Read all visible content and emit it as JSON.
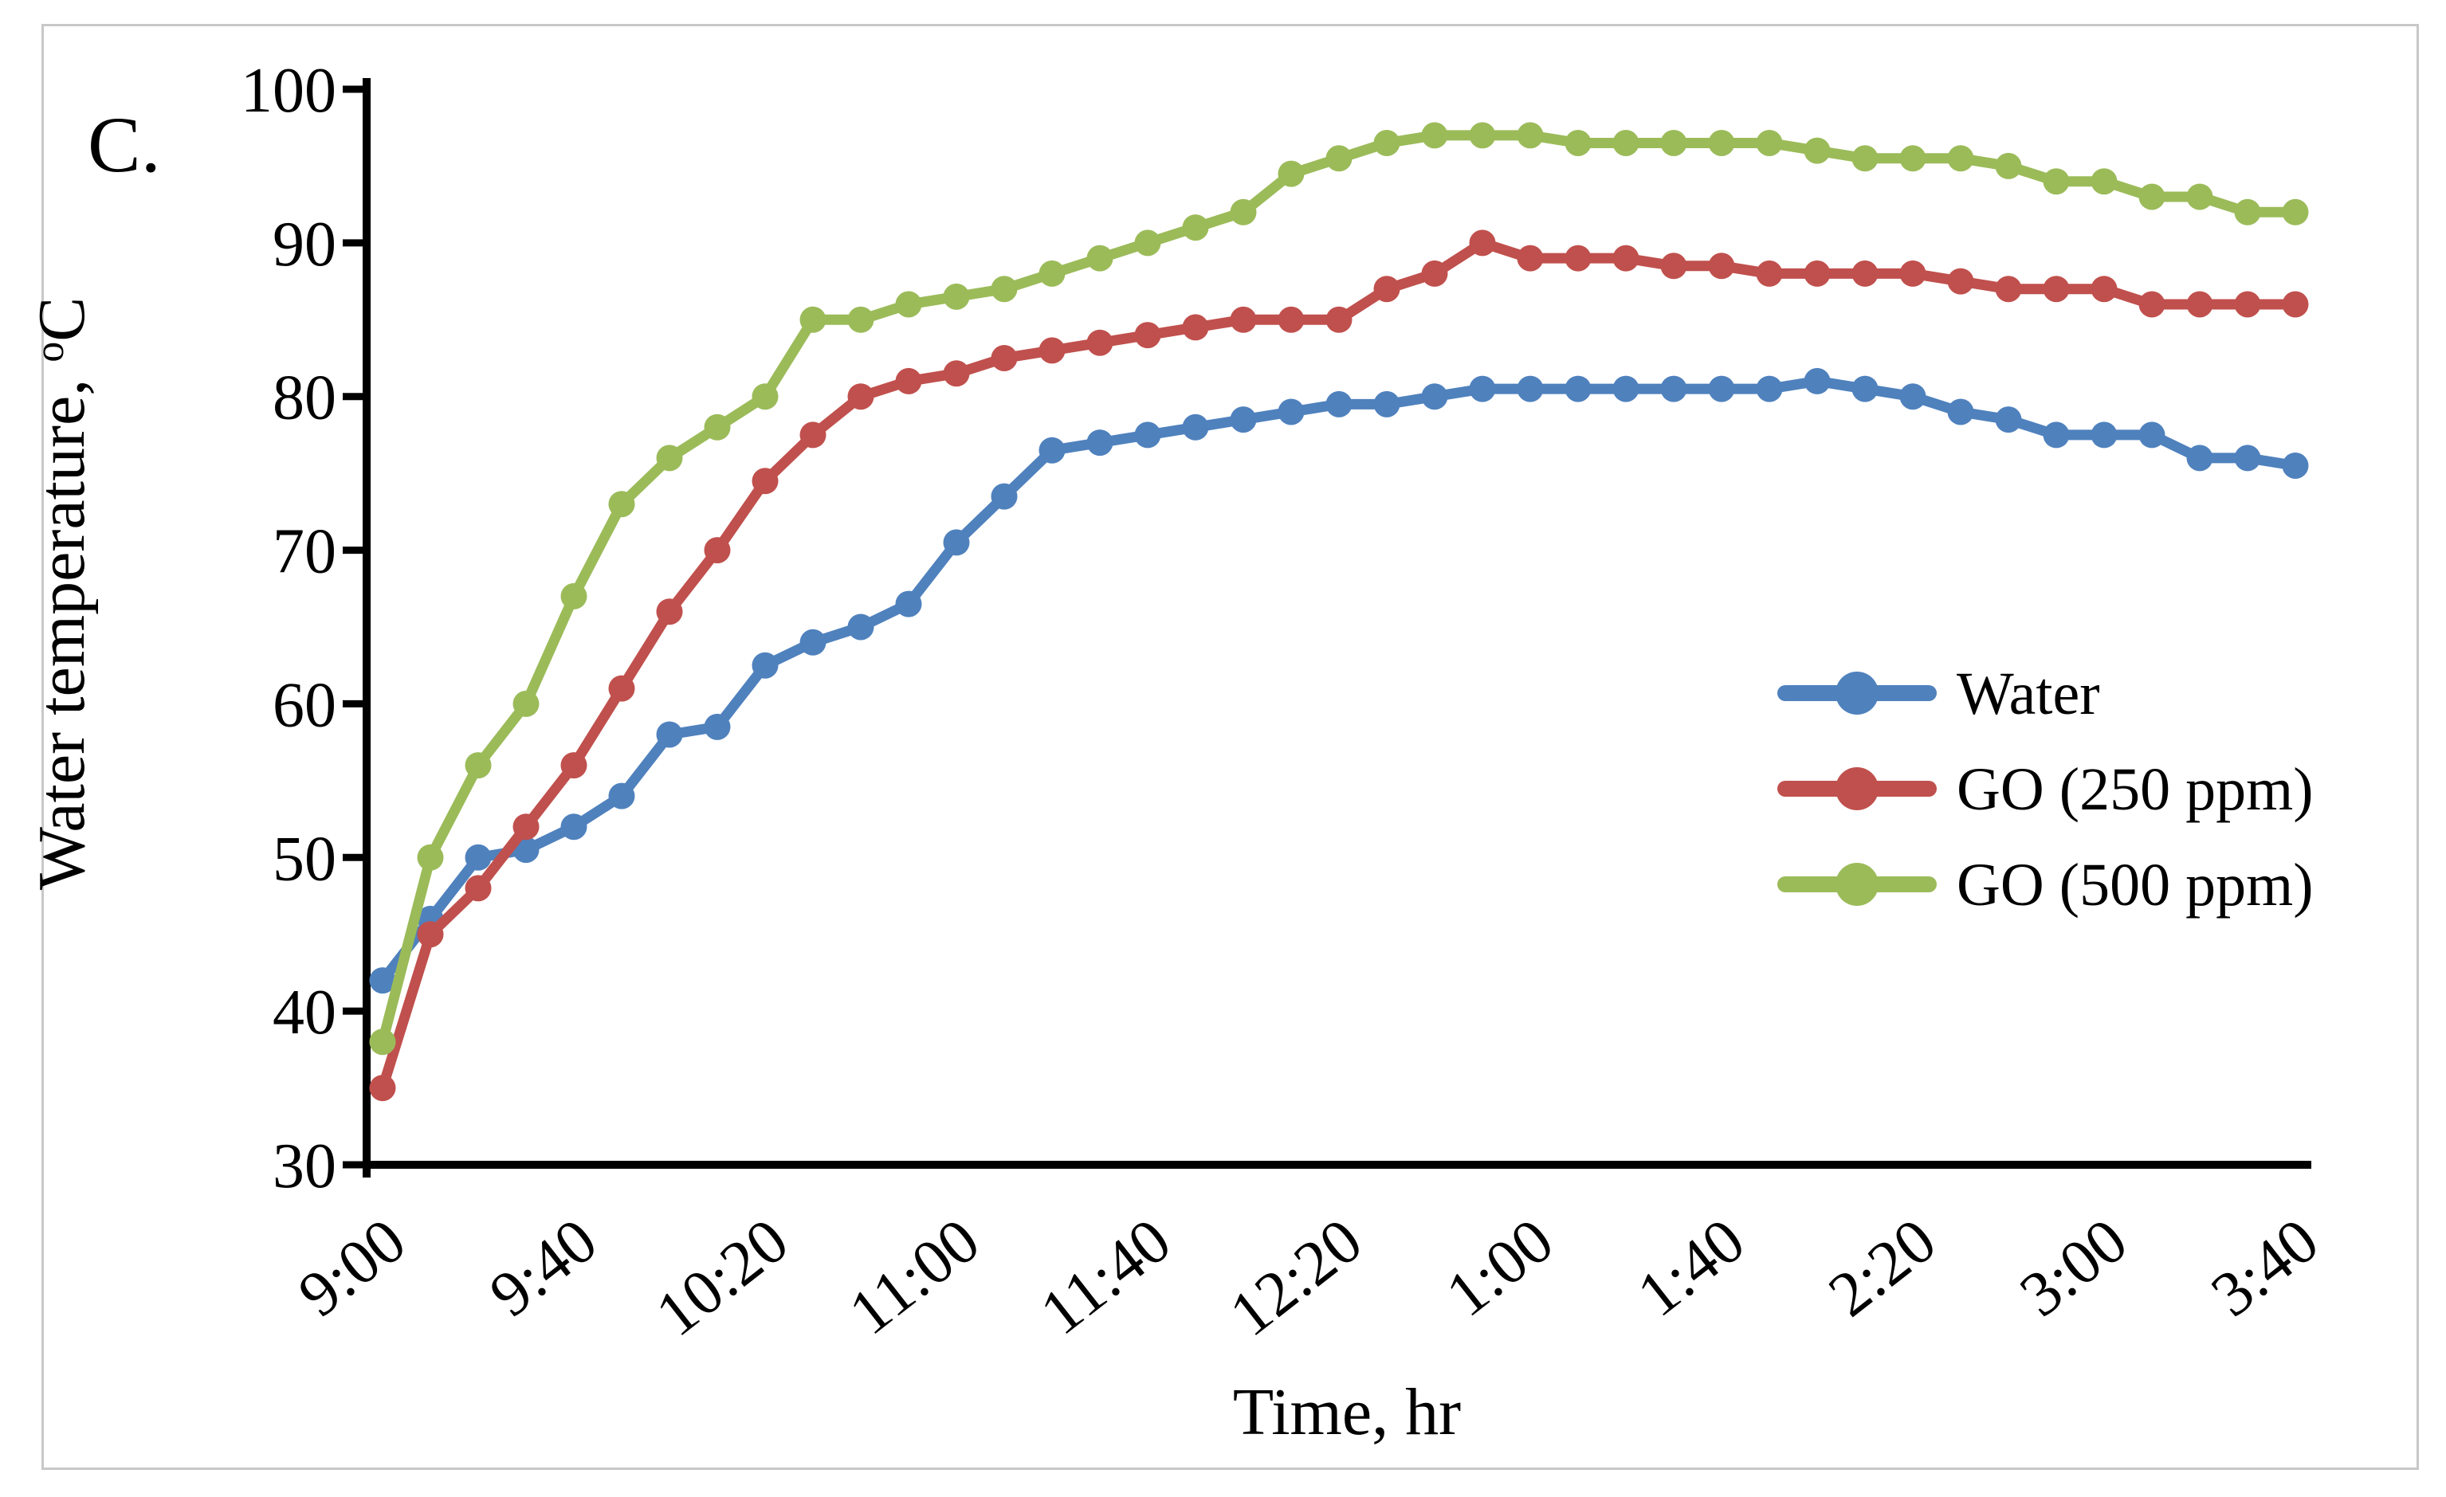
{
  "chart_data": {
    "type": "line",
    "panel_label": "C.",
    "title": "",
    "xlabel": "Time, hr",
    "ylabel": {
      "text": "Water temperature,",
      "superscript": "o",
      "unit": "C"
    },
    "ylim": [
      30,
      100
    ],
    "ytick_step": 10,
    "yticks": [
      30,
      40,
      50,
      60,
      70,
      80,
      90,
      100
    ],
    "grid": false,
    "legend_position": "right-middle",
    "axis_color": "#000000",
    "frame_color": "#c8c8c8",
    "background_color": "#ffffff",
    "x": [
      "9:00",
      "9:10",
      "9:20",
      "9:30",
      "9:40",
      "9:50",
      "10:00",
      "10:10",
      "10:20",
      "10:30",
      "10:40",
      "10:50",
      "11:00",
      "11:10",
      "11:20",
      "11:30",
      "11:40",
      "11:50",
      "12:00",
      "12:10",
      "12:20",
      "12:30",
      "12:40",
      "12:50",
      "1:00",
      "1:10",
      "1:20",
      "1:30",
      "1:40",
      "1:50",
      "2:00",
      "2:10",
      "2:20",
      "2:30",
      "2:40",
      "2:50",
      "3:00",
      "3:10",
      "3:20",
      "3:30",
      "3:40"
    ],
    "x_tick_indices": [
      0,
      4,
      8,
      12,
      16,
      20,
      24,
      28,
      32,
      36,
      40
    ],
    "x_tick_labels": [
      "9:00",
      "9:40",
      "10:20",
      "11:00",
      "11:40",
      "12:20",
      "1:00",
      "1:40",
      "2:20",
      "3:00",
      "3:40"
    ],
    "series": [
      {
        "name": "Water",
        "color": "#4F81BD",
        "values": [
          42,
          46,
          50,
          50.5,
          52,
          54,
          58,
          58.5,
          62.5,
          64,
          65,
          66.5,
          70.5,
          73.5,
          76.5,
          77,
          77.5,
          78,
          78.5,
          79,
          79.5,
          79.5,
          80,
          80.5,
          80.5,
          80.5,
          80.5,
          80.5,
          80.5,
          80.5,
          81,
          80.5,
          80,
          79,
          78.5,
          77.5,
          77.5,
          77.5,
          76,
          76,
          75.5
        ]
      },
      {
        "name": "GO (250 ppm)",
        "color": "#C0504D",
        "values": [
          35,
          45,
          48,
          52,
          56,
          61,
          66,
          70,
          74.5,
          77.5,
          80,
          81,
          81.5,
          82.5,
          83,
          83.5,
          84,
          84.5,
          85,
          85,
          85,
          87,
          88,
          90,
          89,
          89,
          89,
          88.5,
          88.5,
          88,
          88,
          88,
          88,
          87.5,
          87,
          87,
          87,
          86,
          86,
          86,
          86
        ]
      },
      {
        "name": "GO (500 ppm)",
        "color": "#9BBB59",
        "values": [
          38,
          50,
          56,
          60,
          67,
          73,
          76,
          78,
          80,
          85,
          85,
          86,
          86.5,
          87,
          88,
          89,
          90,
          91,
          92,
          94.5,
          95.5,
          96.5,
          97,
          97,
          97,
          96.5,
          96.5,
          96.5,
          96.5,
          96.5,
          96,
          95.5,
          95.5,
          95.5,
          95,
          94,
          94,
          93,
          93,
          92,
          92
        ]
      }
    ]
  }
}
